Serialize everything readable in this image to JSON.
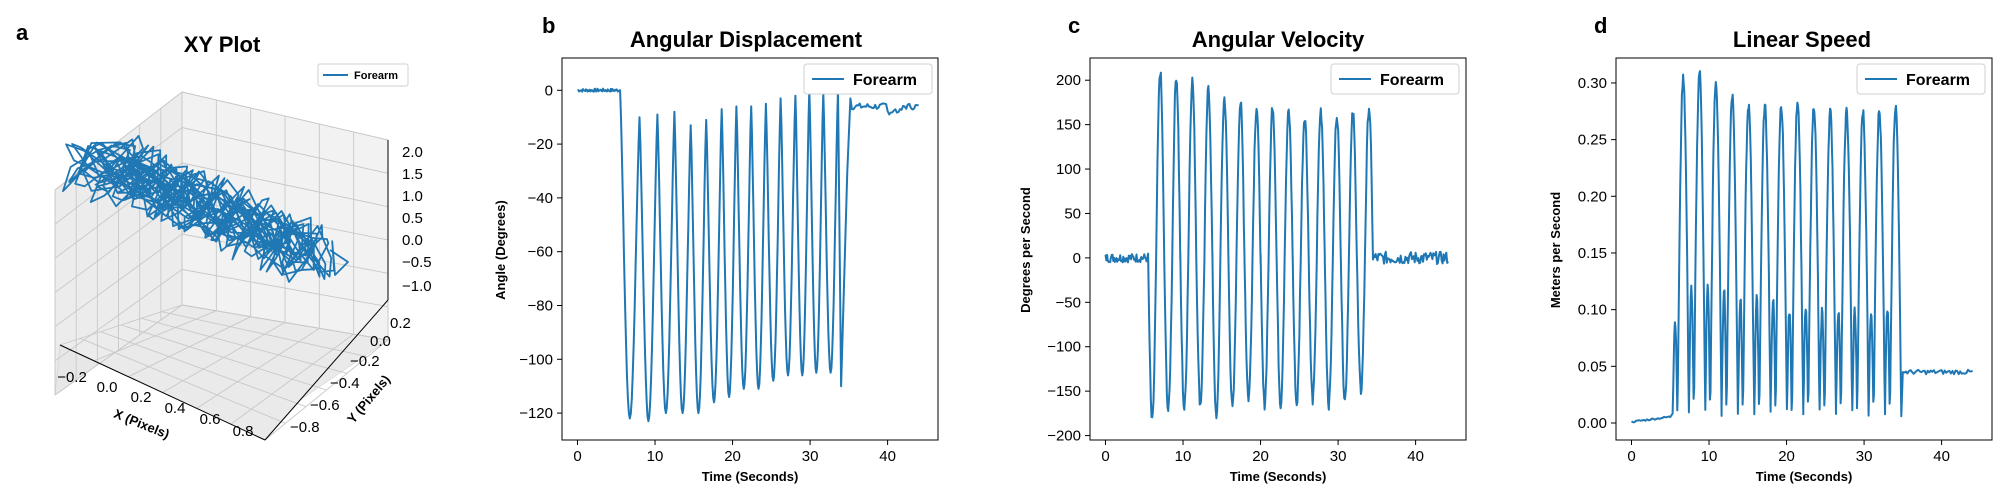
{
  "chart_data": [
    {
      "panel": "a",
      "type": "line",
      "title": "XY Plot",
      "xlabel": "X (Pixels)",
      "ylabel": "Y (Pixels)",
      "zlabel": "",
      "x_ticks": [
        "−0.2",
        "0.0",
        "0.2",
        "0.4",
        "0.6",
        "0.8"
      ],
      "y_ticks": [
        "−0.8",
        "−0.6",
        "−0.4",
        "−0.2",
        "0.0",
        "0.2"
      ],
      "z_ticks": [
        "−1.0",
        "−0.5",
        "0.0",
        "0.5",
        "1.0",
        "1.5",
        "2.0"
      ],
      "xlim": [
        -0.3,
        0.9
      ],
      "ylim": [
        -0.9,
        0.3
      ],
      "zlim": [
        -1.2,
        2.2
      ],
      "series": [
        {
          "name": "Forearm",
          "color": "#1f77b4"
        }
      ],
      "legend_position": "top-right",
      "grid": true,
      "projection": "3d"
    },
    {
      "panel": "b",
      "type": "line",
      "title": "Angular Displacement",
      "xlabel": "Time (Seconds)",
      "ylabel": "Angle (Degrees)",
      "xlim": [
        -2,
        46.5
      ],
      "ylim": [
        -130,
        12
      ],
      "x_ticks": [
        0,
        10,
        20,
        30,
        40
      ],
      "y_ticks": [
        0,
        -20,
        -40,
        -60,
        -80,
        -100,
        -120
      ],
      "x_tick_labels": [
        "0",
        "10",
        "20",
        "30",
        "40"
      ],
      "y_tick_labels": [
        "0",
        "−20",
        "−40",
        "−60",
        "−80",
        "−100",
        "−120"
      ],
      "series": [
        {
          "name": "Forearm",
          "color": "#1f77b4"
        }
      ],
      "legend_position": "top-right",
      "grid": false,
      "baseline_before": 0,
      "baseline_after": -6,
      "oscillation_start": 5.5,
      "oscillation_end": 34.5,
      "peak_times": [
        5.5,
        8.0,
        10.3,
        12.5,
        14.6,
        16.6,
        18.6,
        20.5,
        22.4,
        24.3,
        26.2,
        28.1,
        29.9,
        31.7,
        33.6
      ],
      "peaks": [
        0,
        -10,
        -9,
        -8,
        -13,
        -11,
        -7,
        -6,
        -6,
        -5,
        -3,
        -2,
        0,
        -1,
        0
      ],
      "troughs": [
        -122,
        -123,
        -120,
        -120,
        -120,
        -116,
        -114,
        -111,
        -111,
        -108,
        -106,
        -106,
        -105,
        -105
      ]
    },
    {
      "panel": "c",
      "type": "line",
      "title": "Angular Velocity",
      "xlabel": "Time (Seconds)",
      "ylabel": "Degrees per Second",
      "xlim": [
        -2,
        46.5
      ],
      "ylim": [
        -205,
        225
      ],
      "x_ticks": [
        0,
        10,
        20,
        30,
        40
      ],
      "y_ticks": [
        200,
        150,
        100,
        50,
        0,
        -50,
        -100,
        -150,
        -200
      ],
      "x_tick_labels": [
        "0",
        "10",
        "20",
        "30",
        "40"
      ],
      "y_tick_labels": [
        "200",
        "150",
        "100",
        "50",
        "0",
        "−50",
        "−100",
        "−150",
        "−200"
      ],
      "series": [
        {
          "name": "Forearm",
          "color": "#1f77b4"
        }
      ],
      "legend_position": "top-right",
      "grid": false,
      "oscillation_start": 5.5,
      "oscillation_end": 34.5,
      "peaks": [
        210,
        205,
        200,
        190,
        180,
        175,
        170,
        172,
        165,
        160,
        165,
        162,
        163,
        170
      ],
      "troughs": [
        -185,
        -172,
        -170,
        -165,
        -182,
        -170,
        -158,
        -165,
        -165,
        -165,
        -160,
        -165,
        -160,
        -150
      ]
    },
    {
      "panel": "d",
      "type": "line",
      "title": "Linear Speed",
      "xlabel": "Time (Seconds)",
      "ylabel": "Meters per Second",
      "xlim": [
        -2,
        46.5
      ],
      "ylim": [
        -0.015,
        0.322
      ],
      "x_ticks": [
        0,
        10,
        20,
        30,
        40
      ],
      "y_ticks": [
        0.0,
        0.05,
        0.1,
        0.15,
        0.2,
        0.25,
        0.3
      ],
      "x_tick_labels": [
        "0",
        "10",
        "20",
        "30",
        "40"
      ],
      "y_tick_labels": [
        "0.00",
        "0.05",
        "0.10",
        "0.15",
        "0.20",
        "0.25",
        "0.30"
      ],
      "series": [
        {
          "name": "Forearm",
          "color": "#1f77b4"
        }
      ],
      "legend_position": "top-right",
      "grid": false,
      "oscillation_start": 5.3,
      "oscillation_end": 34.8,
      "big_peaks": [
        0.305,
        0.31,
        0.3,
        0.29,
        0.28,
        0.28,
        0.28,
        0.285,
        0.28,
        0.275,
        0.275,
        0.275,
        0.275,
        0.28
      ],
      "small_peaks": [
        0.09,
        0.12,
        0.12,
        0.12,
        0.11,
        0.11,
        0.11,
        0.1,
        0.1,
        0.1,
        0.1,
        0.1,
        0.1,
        0.1,
        0.09
      ],
      "baseline_after": 0.045
    }
  ],
  "panel_labels": [
    "a",
    "b",
    "c",
    "d"
  ]
}
